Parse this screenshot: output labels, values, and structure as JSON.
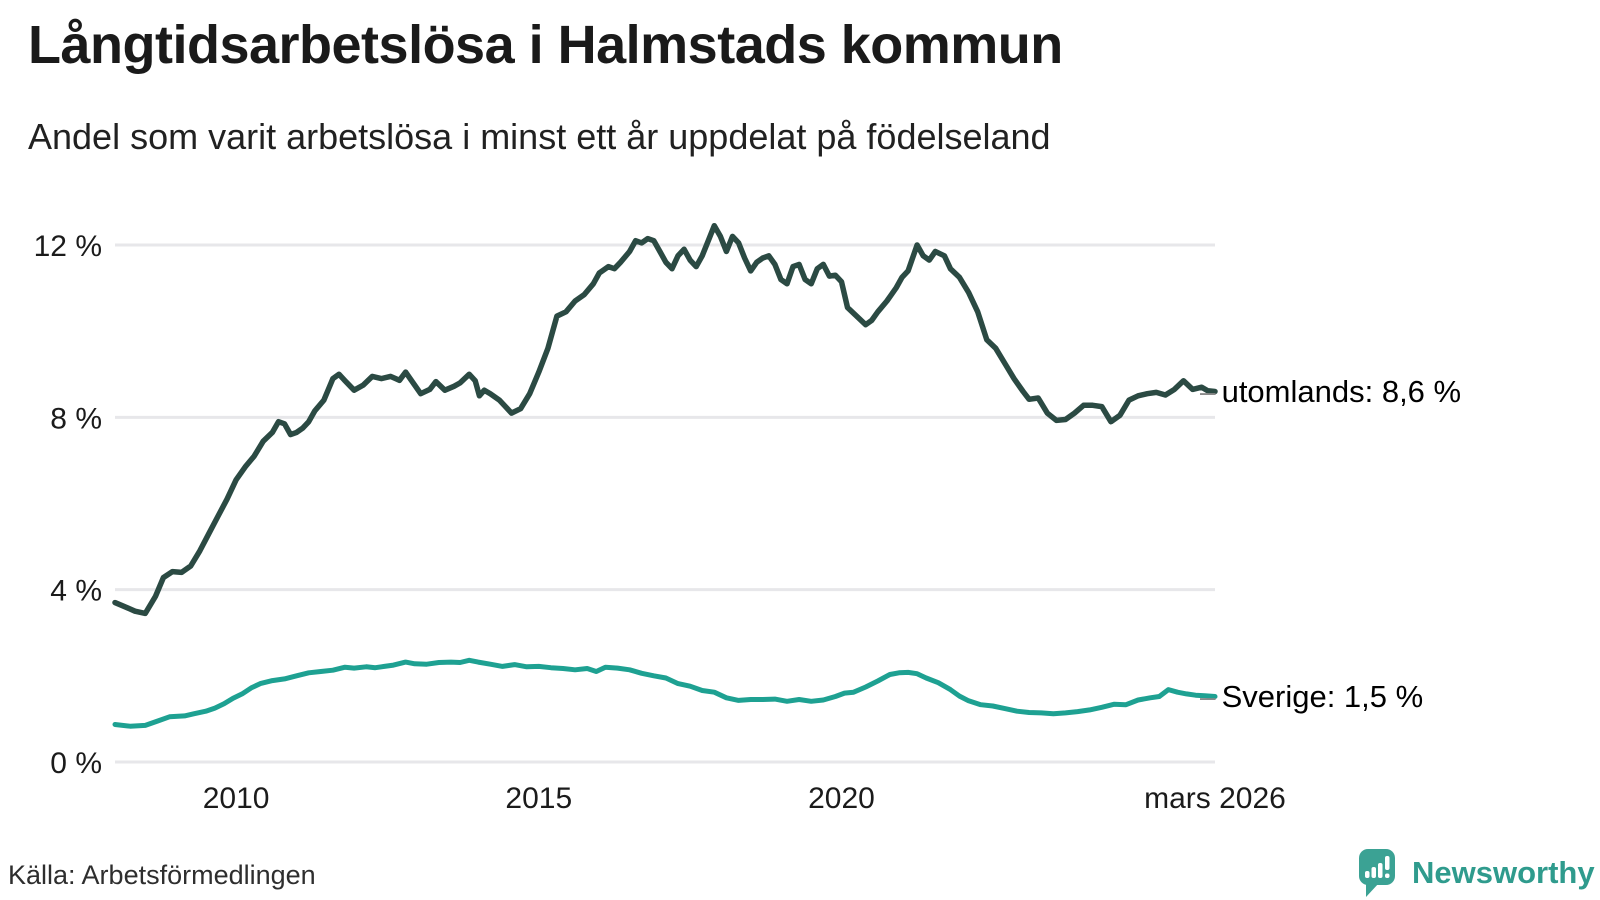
{
  "header": {
    "title": "Långtidsarbetslösa i Halmstads kommun",
    "subtitle": "Andel som varit arbetslösa i minst ett år uppdelat på födelseland"
  },
  "footer": {
    "source": "Källa: Arbetsförmedlingen",
    "brand": "Newsworthy"
  },
  "colors": {
    "grid": "#e7e7ea",
    "utomlands_line": "#2b4a43",
    "sverige_line": "#1ea192",
    "annotation_dash": "#8a8a8a",
    "brand_teal": "#3ba294"
  },
  "chart_data": {
    "type": "line",
    "title": "Långtidsarbetslösa i Halmstads kommun",
    "subtitle": "Andel som varit arbetslösa i minst ett år uppdelat på födelseland",
    "grid": true,
    "x_axis": {
      "range": [
        2008.0,
        2026.17
      ],
      "ticks": [
        {
          "t": 2010,
          "label": "2010"
        },
        {
          "t": 2015,
          "label": "2015"
        },
        {
          "t": 2020,
          "label": "2020"
        },
        {
          "t": 2026.17,
          "label": "mars 2026"
        }
      ]
    },
    "y_axis": {
      "range": [
        0,
        12.8
      ],
      "unit": "%",
      "ticks": [
        {
          "v": 0,
          "label": "0 %"
        },
        {
          "v": 4,
          "label": "4 %"
        },
        {
          "v": 8,
          "label": "8 %"
        },
        {
          "v": 12,
          "label": "12 %"
        }
      ]
    },
    "series": [
      {
        "name": "utomlands",
        "end_label": "utomlands: 8,6 %",
        "end_value_text": "8,6 %",
        "color": "#2b4a43",
        "points": [
          [
            2008.0,
            3.7
          ],
          [
            2008.17,
            3.6
          ],
          [
            2008.33,
            3.5
          ],
          [
            2008.5,
            3.45
          ],
          [
            2008.67,
            3.85
          ],
          [
            2008.8,
            4.28
          ],
          [
            2008.95,
            4.42
          ],
          [
            2009.1,
            4.4
          ],
          [
            2009.25,
            4.55
          ],
          [
            2009.4,
            4.9
          ],
          [
            2009.55,
            5.3
          ],
          [
            2009.7,
            5.7
          ],
          [
            2009.85,
            6.1
          ],
          [
            2010.0,
            6.55
          ],
          [
            2010.15,
            6.85
          ],
          [
            2010.3,
            7.1
          ],
          [
            2010.45,
            7.45
          ],
          [
            2010.6,
            7.65
          ],
          [
            2010.7,
            7.9
          ],
          [
            2010.8,
            7.85
          ],
          [
            2010.9,
            7.6
          ],
          [
            2011.0,
            7.65
          ],
          [
            2011.1,
            7.75
          ],
          [
            2011.2,
            7.9
          ],
          [
            2011.3,
            8.15
          ],
          [
            2011.45,
            8.4
          ],
          [
            2011.6,
            8.9
          ],
          [
            2011.7,
            9.0
          ],
          [
            2011.8,
            8.85
          ],
          [
            2011.95,
            8.63
          ],
          [
            2012.1,
            8.75
          ],
          [
            2012.25,
            8.95
          ],
          [
            2012.4,
            8.9
          ],
          [
            2012.55,
            8.95
          ],
          [
            2012.7,
            8.86
          ],
          [
            2012.8,
            9.05
          ],
          [
            2012.9,
            8.85
          ],
          [
            2013.05,
            8.55
          ],
          [
            2013.2,
            8.65
          ],
          [
            2013.3,
            8.83
          ],
          [
            2013.45,
            8.63
          ],
          [
            2013.6,
            8.72
          ],
          [
            2013.7,
            8.8
          ],
          [
            2013.85,
            9.0
          ],
          [
            2013.95,
            8.85
          ],
          [
            2014.02,
            8.5
          ],
          [
            2014.1,
            8.63
          ],
          [
            2014.2,
            8.55
          ],
          [
            2014.35,
            8.4
          ],
          [
            2014.45,
            8.25
          ],
          [
            2014.55,
            8.1
          ],
          [
            2014.7,
            8.2
          ],
          [
            2014.85,
            8.55
          ],
          [
            2015.0,
            9.05
          ],
          [
            2015.15,
            9.6
          ],
          [
            2015.3,
            10.35
          ],
          [
            2015.45,
            10.45
          ],
          [
            2015.6,
            10.7
          ],
          [
            2015.75,
            10.85
          ],
          [
            2015.9,
            11.1
          ],
          [
            2016.0,
            11.35
          ],
          [
            2016.15,
            11.5
          ],
          [
            2016.25,
            11.45
          ],
          [
            2016.35,
            11.6
          ],
          [
            2016.5,
            11.85
          ],
          [
            2016.6,
            12.1
          ],
          [
            2016.7,
            12.05
          ],
          [
            2016.8,
            12.15
          ],
          [
            2016.9,
            12.1
          ],
          [
            2017.0,
            11.85
          ],
          [
            2017.1,
            11.6
          ],
          [
            2017.2,
            11.45
          ],
          [
            2017.3,
            11.75
          ],
          [
            2017.4,
            11.9
          ],
          [
            2017.5,
            11.65
          ],
          [
            2017.6,
            11.5
          ],
          [
            2017.7,
            11.75
          ],
          [
            2017.8,
            12.1
          ],
          [
            2017.9,
            12.45
          ],
          [
            2018.0,
            12.2
          ],
          [
            2018.1,
            11.85
          ],
          [
            2018.2,
            12.2
          ],
          [
            2018.3,
            12.05
          ],
          [
            2018.4,
            11.7
          ],
          [
            2018.5,
            11.4
          ],
          [
            2018.6,
            11.6
          ],
          [
            2018.7,
            11.7
          ],
          [
            2018.8,
            11.75
          ],
          [
            2018.9,
            11.55
          ],
          [
            2019.0,
            11.2
          ],
          [
            2019.1,
            11.1
          ],
          [
            2019.2,
            11.5
          ],
          [
            2019.3,
            11.55
          ],
          [
            2019.4,
            11.2
          ],
          [
            2019.5,
            11.1
          ],
          [
            2019.6,
            11.45
          ],
          [
            2019.7,
            11.55
          ],
          [
            2019.8,
            11.28
          ],
          [
            2019.9,
            11.3
          ],
          [
            2020.0,
            11.15
          ],
          [
            2020.1,
            10.55
          ],
          [
            2020.25,
            10.35
          ],
          [
            2020.4,
            10.15
          ],
          [
            2020.5,
            10.25
          ],
          [
            2020.6,
            10.45
          ],
          [
            2020.75,
            10.7
          ],
          [
            2020.9,
            11.0
          ],
          [
            2021.0,
            11.25
          ],
          [
            2021.1,
            11.4
          ],
          [
            2021.25,
            12.0
          ],
          [
            2021.35,
            11.75
          ],
          [
            2021.45,
            11.65
          ],
          [
            2021.55,
            11.85
          ],
          [
            2021.7,
            11.75
          ],
          [
            2021.8,
            11.45
          ],
          [
            2021.95,
            11.25
          ],
          [
            2022.1,
            10.9
          ],
          [
            2022.25,
            10.45
          ],
          [
            2022.4,
            9.8
          ],
          [
            2022.55,
            9.6
          ],
          [
            2022.7,
            9.25
          ],
          [
            2022.85,
            8.9
          ],
          [
            2023.0,
            8.6
          ],
          [
            2023.1,
            8.42
          ],
          [
            2023.25,
            8.45
          ],
          [
            2023.4,
            8.1
          ],
          [
            2023.55,
            7.93
          ],
          [
            2023.7,
            7.95
          ],
          [
            2023.85,
            8.1
          ],
          [
            2024.0,
            8.28
          ],
          [
            2024.15,
            8.28
          ],
          [
            2024.3,
            8.25
          ],
          [
            2024.45,
            7.9
          ],
          [
            2024.6,
            8.05
          ],
          [
            2024.75,
            8.4
          ],
          [
            2024.9,
            8.5
          ],
          [
            2025.05,
            8.55
          ],
          [
            2025.2,
            8.58
          ],
          [
            2025.35,
            8.52
          ],
          [
            2025.5,
            8.65
          ],
          [
            2025.65,
            8.85
          ],
          [
            2025.8,
            8.65
          ],
          [
            2025.95,
            8.7
          ],
          [
            2026.05,
            8.62
          ],
          [
            2026.17,
            8.6
          ]
        ]
      },
      {
        "name": "Sverige",
        "end_label": "Sverige: 1,5 %",
        "end_value_text": "1,5 %",
        "color": "#1ea192",
        "points": [
          [
            2008.0,
            0.87
          ],
          [
            2008.25,
            0.83
          ],
          [
            2008.5,
            0.85
          ],
          [
            2008.7,
            0.95
          ],
          [
            2008.9,
            1.05
          ],
          [
            2009.15,
            1.07
          ],
          [
            2009.3,
            1.12
          ],
          [
            2009.5,
            1.18
          ],
          [
            2009.65,
            1.25
          ],
          [
            2009.8,
            1.35
          ],
          [
            2009.95,
            1.48
          ],
          [
            2010.1,
            1.58
          ],
          [
            2010.25,
            1.72
          ],
          [
            2010.4,
            1.82
          ],
          [
            2010.6,
            1.89
          ],
          [
            2010.8,
            1.93
          ],
          [
            2011.0,
            2.0
          ],
          [
            2011.2,
            2.07
          ],
          [
            2011.4,
            2.1
          ],
          [
            2011.6,
            2.13
          ],
          [
            2011.8,
            2.2
          ],
          [
            2011.95,
            2.18
          ],
          [
            2012.15,
            2.21
          ],
          [
            2012.3,
            2.19
          ],
          [
            2012.45,
            2.22
          ],
          [
            2012.6,
            2.25
          ],
          [
            2012.8,
            2.32
          ],
          [
            2012.95,
            2.28
          ],
          [
            2013.15,
            2.27
          ],
          [
            2013.35,
            2.31
          ],
          [
            2013.55,
            2.32
          ],
          [
            2013.7,
            2.31
          ],
          [
            2013.85,
            2.36
          ],
          [
            2014.0,
            2.32
          ],
          [
            2014.2,
            2.27
          ],
          [
            2014.4,
            2.22
          ],
          [
            2014.6,
            2.26
          ],
          [
            2014.8,
            2.21
          ],
          [
            2015.0,
            2.22
          ],
          [
            2015.2,
            2.19
          ],
          [
            2015.4,
            2.17
          ],
          [
            2015.6,
            2.14
          ],
          [
            2015.8,
            2.17
          ],
          [
            2015.95,
            2.1
          ],
          [
            2016.1,
            2.2
          ],
          [
            2016.3,
            2.18
          ],
          [
            2016.5,
            2.14
          ],
          [
            2016.7,
            2.06
          ],
          [
            2016.9,
            2.0
          ],
          [
            2017.1,
            1.95
          ],
          [
            2017.3,
            1.82
          ],
          [
            2017.5,
            1.76
          ],
          [
            2017.7,
            1.66
          ],
          [
            2017.9,
            1.62
          ],
          [
            2018.1,
            1.49
          ],
          [
            2018.3,
            1.43
          ],
          [
            2018.5,
            1.45
          ],
          [
            2018.7,
            1.45
          ],
          [
            2018.9,
            1.46
          ],
          [
            2019.1,
            1.41
          ],
          [
            2019.3,
            1.45
          ],
          [
            2019.5,
            1.41
          ],
          [
            2019.7,
            1.44
          ],
          [
            2019.9,
            1.52
          ],
          [
            2020.05,
            1.6
          ],
          [
            2020.2,
            1.62
          ],
          [
            2020.4,
            1.74
          ],
          [
            2020.6,
            1.88
          ],
          [
            2020.8,
            2.03
          ],
          [
            2020.95,
            2.07
          ],
          [
            2021.1,
            2.08
          ],
          [
            2021.25,
            2.05
          ],
          [
            2021.4,
            1.95
          ],
          [
            2021.6,
            1.84
          ],
          [
            2021.8,
            1.68
          ],
          [
            2021.95,
            1.53
          ],
          [
            2022.1,
            1.42
          ],
          [
            2022.3,
            1.33
          ],
          [
            2022.5,
            1.3
          ],
          [
            2022.7,
            1.24
          ],
          [
            2022.9,
            1.18
          ],
          [
            2023.1,
            1.15
          ],
          [
            2023.3,
            1.14
          ],
          [
            2023.5,
            1.12
          ],
          [
            2023.7,
            1.14
          ],
          [
            2023.9,
            1.17
          ],
          [
            2024.1,
            1.21
          ],
          [
            2024.3,
            1.27
          ],
          [
            2024.5,
            1.34
          ],
          [
            2024.7,
            1.33
          ],
          [
            2024.9,
            1.44
          ],
          [
            2025.1,
            1.49
          ],
          [
            2025.25,
            1.52
          ],
          [
            2025.4,
            1.68
          ],
          [
            2025.55,
            1.62
          ],
          [
            2025.7,
            1.58
          ],
          [
            2025.85,
            1.55
          ],
          [
            2026.0,
            1.54
          ],
          [
            2026.17,
            1.52
          ]
        ]
      }
    ]
  }
}
